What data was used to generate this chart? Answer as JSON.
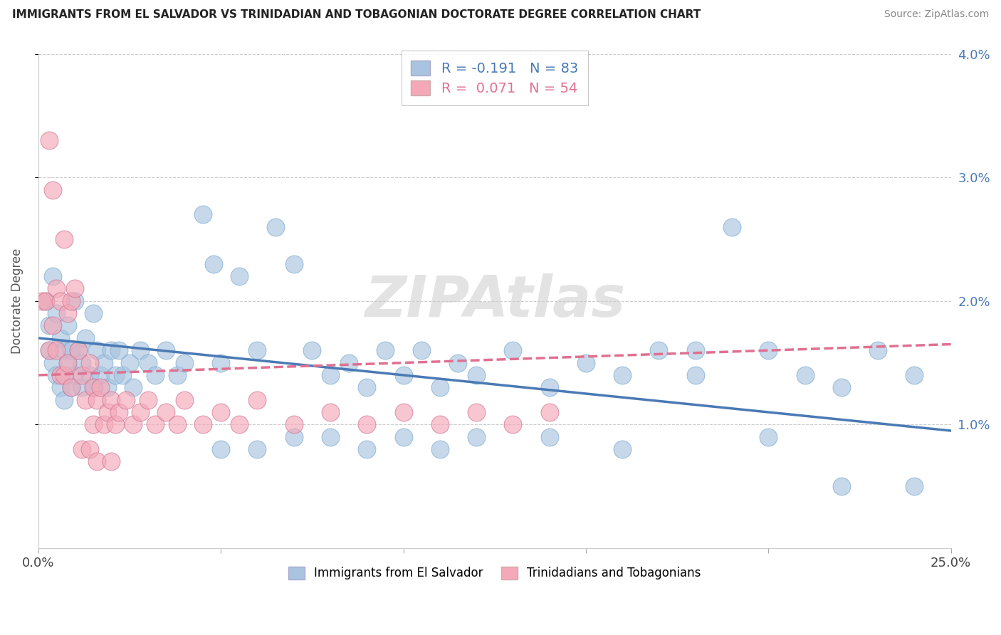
{
  "title": "IMMIGRANTS FROM EL SALVADOR VS TRINIDADIAN AND TOBAGONIAN DOCTORATE DEGREE CORRELATION CHART",
  "source": "Source: ZipAtlas.com",
  "ylabel": "Doctorate Degree",
  "x_min": 0.0,
  "x_max": 0.25,
  "y_min": 0.0,
  "y_max": 0.04,
  "x_ticks": [
    0.0,
    0.05,
    0.1,
    0.15,
    0.2,
    0.25
  ],
  "x_tick_labels": [
    "0.0%",
    "",
    "",
    "",
    "",
    "25.0%"
  ],
  "y_ticks_right": [
    0.01,
    0.02,
    0.03,
    0.04
  ],
  "y_tick_labels_right": [
    "1.0%",
    "2.0%",
    "3.0%",
    "4.0%"
  ],
  "blue_R": -0.191,
  "blue_N": 83,
  "pink_R": 0.071,
  "pink_N": 54,
  "blue_color": "#a8c4e0",
  "pink_color": "#f4a8b8",
  "blue_line_color": "#4a7ab5",
  "pink_line_color": "#e07090",
  "legend_label_blue": "Immigrants from El Salvador",
  "legend_label_pink": "Trinidadians and Tobagonians",
  "watermark": "ZIPAtlas",
  "blue_scatter_x": [
    0.002,
    0.003,
    0.003,
    0.004,
    0.004,
    0.005,
    0.005,
    0.006,
    0.006,
    0.007,
    0.007,
    0.008,
    0.008,
    0.009,
    0.009,
    0.01,
    0.01,
    0.011,
    0.012,
    0.012,
    0.013,
    0.014,
    0.015,
    0.015,
    0.016,
    0.017,
    0.018,
    0.019,
    0.02,
    0.021,
    0.022,
    0.023,
    0.025,
    0.026,
    0.028,
    0.03,
    0.032,
    0.035,
    0.038,
    0.04,
    0.045,
    0.048,
    0.05,
    0.055,
    0.06,
    0.065,
    0.07,
    0.075,
    0.08,
    0.085,
    0.09,
    0.095,
    0.1,
    0.105,
    0.11,
    0.115,
    0.12,
    0.13,
    0.14,
    0.15,
    0.16,
    0.17,
    0.18,
    0.19,
    0.2,
    0.21,
    0.22,
    0.23,
    0.24,
    0.05,
    0.06,
    0.07,
    0.08,
    0.09,
    0.1,
    0.11,
    0.12,
    0.14,
    0.16,
    0.18,
    0.2,
    0.22,
    0.24
  ],
  "blue_scatter_y": [
    0.02,
    0.018,
    0.016,
    0.022,
    0.015,
    0.019,
    0.014,
    0.017,
    0.013,
    0.016,
    0.012,
    0.018,
    0.015,
    0.016,
    0.013,
    0.02,
    0.014,
    0.016,
    0.015,
    0.013,
    0.017,
    0.014,
    0.019,
    0.013,
    0.016,
    0.014,
    0.015,
    0.013,
    0.016,
    0.014,
    0.016,
    0.014,
    0.015,
    0.013,
    0.016,
    0.015,
    0.014,
    0.016,
    0.014,
    0.015,
    0.027,
    0.023,
    0.015,
    0.022,
    0.016,
    0.026,
    0.023,
    0.016,
    0.014,
    0.015,
    0.013,
    0.016,
    0.014,
    0.016,
    0.013,
    0.015,
    0.014,
    0.016,
    0.013,
    0.015,
    0.014,
    0.016,
    0.014,
    0.026,
    0.016,
    0.014,
    0.013,
    0.016,
    0.014,
    0.008,
    0.008,
    0.009,
    0.009,
    0.008,
    0.009,
    0.008,
    0.009,
    0.009,
    0.008,
    0.016,
    0.009,
    0.005,
    0.005
  ],
  "pink_scatter_x": [
    0.001,
    0.002,
    0.003,
    0.003,
    0.004,
    0.004,
    0.005,
    0.005,
    0.006,
    0.006,
    0.007,
    0.007,
    0.008,
    0.008,
    0.009,
    0.009,
    0.01,
    0.011,
    0.012,
    0.013,
    0.014,
    0.015,
    0.015,
    0.016,
    0.017,
    0.018,
    0.019,
    0.02,
    0.021,
    0.022,
    0.024,
    0.026,
    0.028,
    0.03,
    0.032,
    0.035,
    0.038,
    0.04,
    0.045,
    0.05,
    0.055,
    0.06,
    0.07,
    0.08,
    0.09,
    0.1,
    0.11,
    0.12,
    0.13,
    0.14,
    0.012,
    0.014,
    0.016,
    0.02
  ],
  "pink_scatter_y": [
    0.02,
    0.02,
    0.033,
    0.016,
    0.029,
    0.018,
    0.021,
    0.016,
    0.02,
    0.014,
    0.025,
    0.014,
    0.019,
    0.015,
    0.02,
    0.013,
    0.021,
    0.016,
    0.014,
    0.012,
    0.015,
    0.013,
    0.01,
    0.012,
    0.013,
    0.01,
    0.011,
    0.012,
    0.01,
    0.011,
    0.012,
    0.01,
    0.011,
    0.012,
    0.01,
    0.011,
    0.01,
    0.012,
    0.01,
    0.011,
    0.01,
    0.012,
    0.01,
    0.011,
    0.01,
    0.011,
    0.01,
    0.011,
    0.01,
    0.011,
    0.008,
    0.008,
    0.007,
    0.007
  ],
  "blue_trend_x": [
    0.0,
    0.25
  ],
  "blue_trend_y": [
    0.017,
    0.0095
  ],
  "pink_trend_x": [
    0.0,
    0.25
  ],
  "pink_trend_y": [
    0.014,
    0.0165
  ]
}
